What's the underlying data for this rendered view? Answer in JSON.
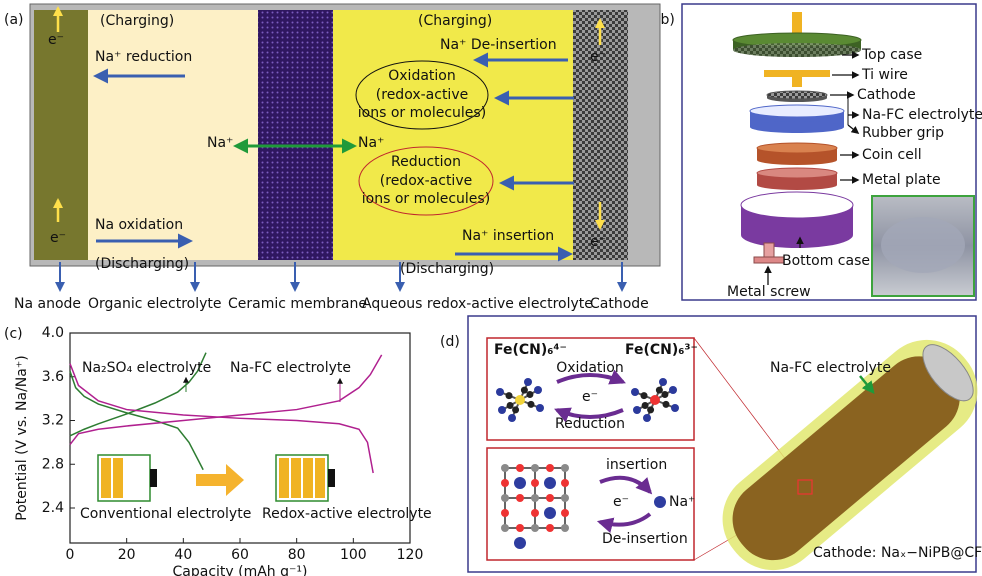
{
  "panel_labels": [
    "(a)",
    "(b)",
    "(c)",
    "(d)"
  ],
  "panel_a": {
    "charging_left": "(Charging)",
    "charging_right": "(Charging)",
    "na_reduction": "Na⁺ reduction",
    "na_deinsertion": "Na⁺ De-insertion",
    "oxidation": [
      "Oxidation",
      "(redox-active",
      "ions or molecules)"
    ],
    "reduction": [
      "Reduction",
      "(redox-active",
      "ions or molecules)"
    ],
    "na_left": "Na⁺",
    "na_right": "Na⁺",
    "electrons": [
      "e⁻",
      "e⁻",
      "e⁻",
      "e⁻"
    ],
    "na_oxidation": "Na oxidation",
    "na_insertion": "Na⁺ insertion",
    "discharging_left": "(Discharging)",
    "discharging_right": "(Discharging)",
    "bottom_labels": [
      "Na anode",
      "Organic electrolyte",
      "Ceramic membrane",
      "Aqueous redox-active electrolyte",
      "Cathode"
    ]
  },
  "panel_b": {
    "labels": [
      "Top case",
      "Ti wire",
      "Cathode",
      "Na-FC electrolyte",
      "Rubber grip",
      "Coin cell",
      "Metal plate",
      "Bottom case",
      "Metal screw"
    ]
  },
  "chart_data": {
    "type": "line",
    "x_label": "Capacity (mAh g⁻¹)",
    "y_label": "Potential (V vs. Na/Na⁺)",
    "xlim": [
      0,
      120
    ],
    "xticks": [
      0,
      20,
      40,
      60,
      80,
      100,
      120
    ],
    "ylim": [
      2.08,
      4.0
    ],
    "yticks": [
      2.4,
      2.8,
      3.2,
      3.6,
      {
        "value": 4.0,
        "label": "4.0"
      }
    ],
    "series": [
      {
        "color": "#2e7d32",
        "x": [
          0,
          5,
          10,
          20,
          30,
          38,
          42,
          45,
          48
        ],
        "values": [
          3.06,
          3.12,
          3.17,
          3.26,
          3.36,
          3.46,
          3.55,
          3.65,
          3.82
        ]
      },
      {
        "color": "#2e7d32",
        "x": [
          0,
          2,
          5,
          10,
          20,
          30,
          38,
          42,
          45,
          47
        ],
        "values": [
          3.65,
          3.5,
          3.42,
          3.35,
          3.27,
          3.2,
          3.13,
          3.0,
          2.85,
          2.75
        ]
      },
      {
        "color": "#b0208f",
        "x": [
          0,
          3,
          10,
          20,
          40,
          60,
          80,
          95,
          102,
          106,
          110
        ],
        "values": [
          2.98,
          3.08,
          3.12,
          3.15,
          3.2,
          3.25,
          3.3,
          3.38,
          3.5,
          3.62,
          3.8
        ]
      },
      {
        "color": "#b0208f",
        "x": [
          0,
          3,
          10,
          20,
          40,
          60,
          80,
          95,
          102,
          105,
          107
        ],
        "values": [
          3.72,
          3.52,
          3.38,
          3.3,
          3.25,
          3.22,
          3.2,
          3.17,
          3.12,
          3.0,
          2.72
        ]
      }
    ],
    "annotations": [
      "Na₂SO₄ electrolyte",
      "Na-FC electrolyte",
      "Conventional electrolyte",
      "Redox-active electrolyte"
    ]
  },
  "panel_d": {
    "fe4": "Fe(CN)₆⁴⁻",
    "fe3": "Fe(CN)₆³⁻",
    "oxidation": "Oxidation",
    "reduction": "Reduction",
    "e_top": "e⁻",
    "insertion": "insertion",
    "deinsertion": "De-insertion",
    "e_bottom": "e⁻",
    "na": "Na⁺",
    "electrolyte": "Na-FC electrolyte",
    "cathode": "Cathode: Naₓ−NiPB@CF"
  }
}
